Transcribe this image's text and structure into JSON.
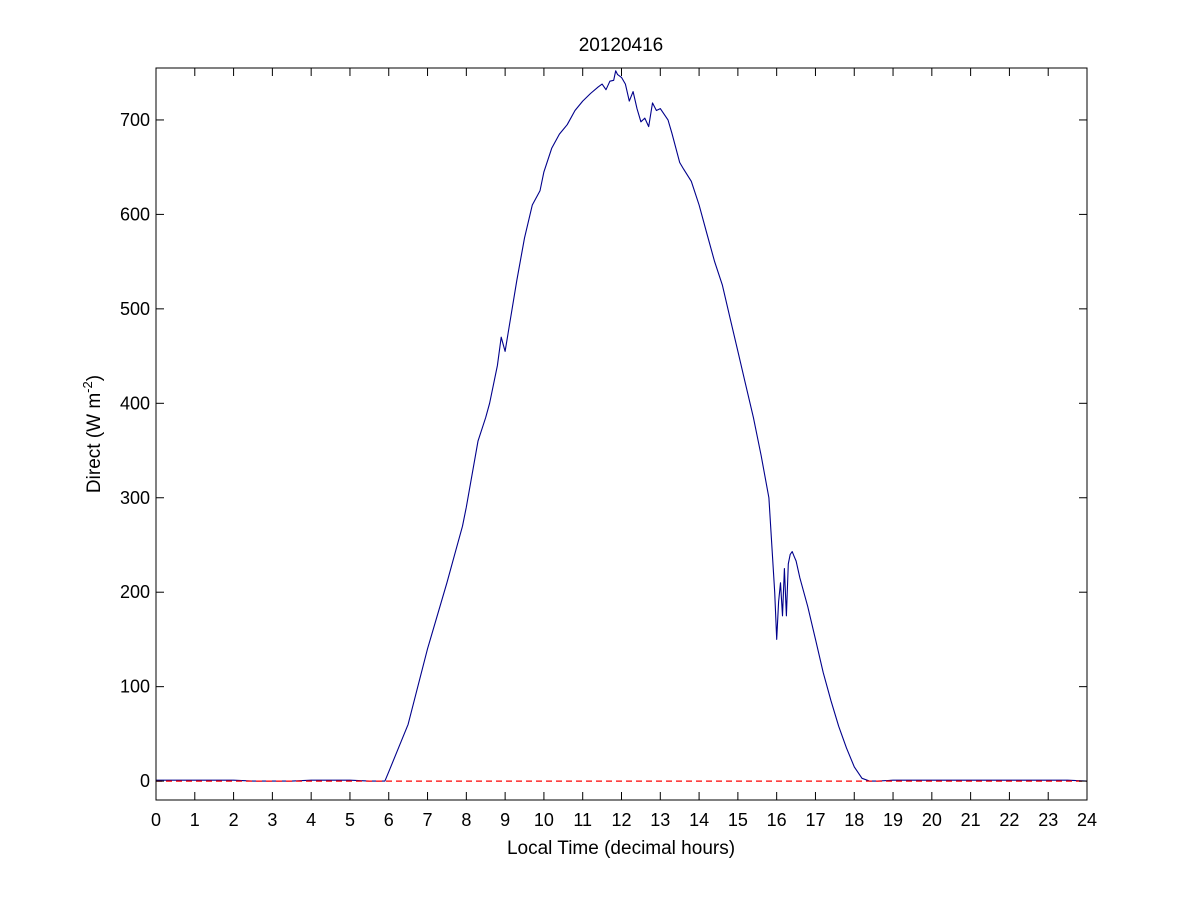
{
  "chart_data": {
    "type": "line",
    "title": "20120416",
    "xlabel": "Local Time (decimal hours)",
    "ylabel": {
      "prefix": "Direct (W m",
      "superscript": "-2",
      "suffix": ")"
    },
    "xlim": [
      0,
      24
    ],
    "ylim": [
      -20,
      755
    ],
    "xticks": [
      0,
      1,
      2,
      3,
      4,
      5,
      6,
      7,
      8,
      9,
      10,
      11,
      12,
      13,
      14,
      15,
      16,
      17,
      18,
      19,
      20,
      21,
      22,
      23,
      24
    ],
    "yticks": [
      0,
      100,
      200,
      300,
      400,
      500,
      600,
      700
    ],
    "grid": false,
    "legend": "none",
    "series": [
      {
        "color": "#00008b",
        "style": "solid",
        "x": [
          0,
          0.5,
          1,
          1.5,
          2,
          2.5,
          3,
          3.5,
          4,
          4.5,
          5,
          5.5,
          5.9,
          6.0,
          6.2,
          6.5,
          7.0,
          7.5,
          7.7,
          7.9,
          8.0,
          8.3,
          8.5,
          8.6,
          8.8,
          8.9,
          9.0,
          9.1,
          9.3,
          9.5,
          9.7,
          9.9,
          10.0,
          10.2,
          10.4,
          10.6,
          10.8,
          11.0,
          11.2,
          11.4,
          11.5,
          11.6,
          11.7,
          11.8,
          11.85,
          11.9,
          12.0,
          12.1,
          12.2,
          12.3,
          12.4,
          12.5,
          12.6,
          12.7,
          12.8,
          12.9,
          13.0,
          13.2,
          13.3,
          13.5,
          13.6,
          13.8,
          14.0,
          14.2,
          14.4,
          14.6,
          14.8,
          15.0,
          15.2,
          15.4,
          15.6,
          15.8,
          15.95,
          16.0,
          16.05,
          16.1,
          16.15,
          16.2,
          16.25,
          16.3,
          16.35,
          16.4,
          16.45,
          16.5,
          16.6,
          16.8,
          17.0,
          17.2,
          17.4,
          17.6,
          17.8,
          18.0,
          18.2,
          18.4,
          18.6,
          19.0,
          19.5,
          20,
          20.5,
          21,
          21.5,
          22,
          22.5,
          23,
          23.5,
          24
        ],
        "y": [
          1,
          1,
          1,
          1,
          1,
          0,
          0,
          0,
          1,
          1,
          1,
          0,
          0,
          10,
          30,
          60,
          140,
          210,
          240,
          270,
          290,
          360,
          385,
          400,
          440,
          470,
          455,
          480,
          530,
          575,
          610,
          625,
          645,
          670,
          685,
          695,
          710,
          720,
          728,
          735,
          738,
          732,
          741,
          742,
          752,
          748,
          745,
          738,
          720,
          730,
          712,
          698,
          702,
          693,
          718,
          710,
          712,
          700,
          686,
          655,
          648,
          635,
          610,
          580,
          550,
          525,
          490,
          455,
          420,
          385,
          345,
          300,
          200,
          150,
          190,
          210,
          175,
          225,
          175,
          230,
          240,
          243,
          238,
          233,
          215,
          185,
          150,
          115,
          85,
          58,
          35,
          15,
          3,
          0,
          0,
          1,
          1,
          1,
          1,
          1,
          1,
          1,
          1,
          1,
          1,
          0
        ]
      },
      {
        "color": "#ff0000",
        "style": "dashed",
        "x": [
          0,
          24
        ],
        "y": [
          0,
          0
        ]
      }
    ]
  }
}
